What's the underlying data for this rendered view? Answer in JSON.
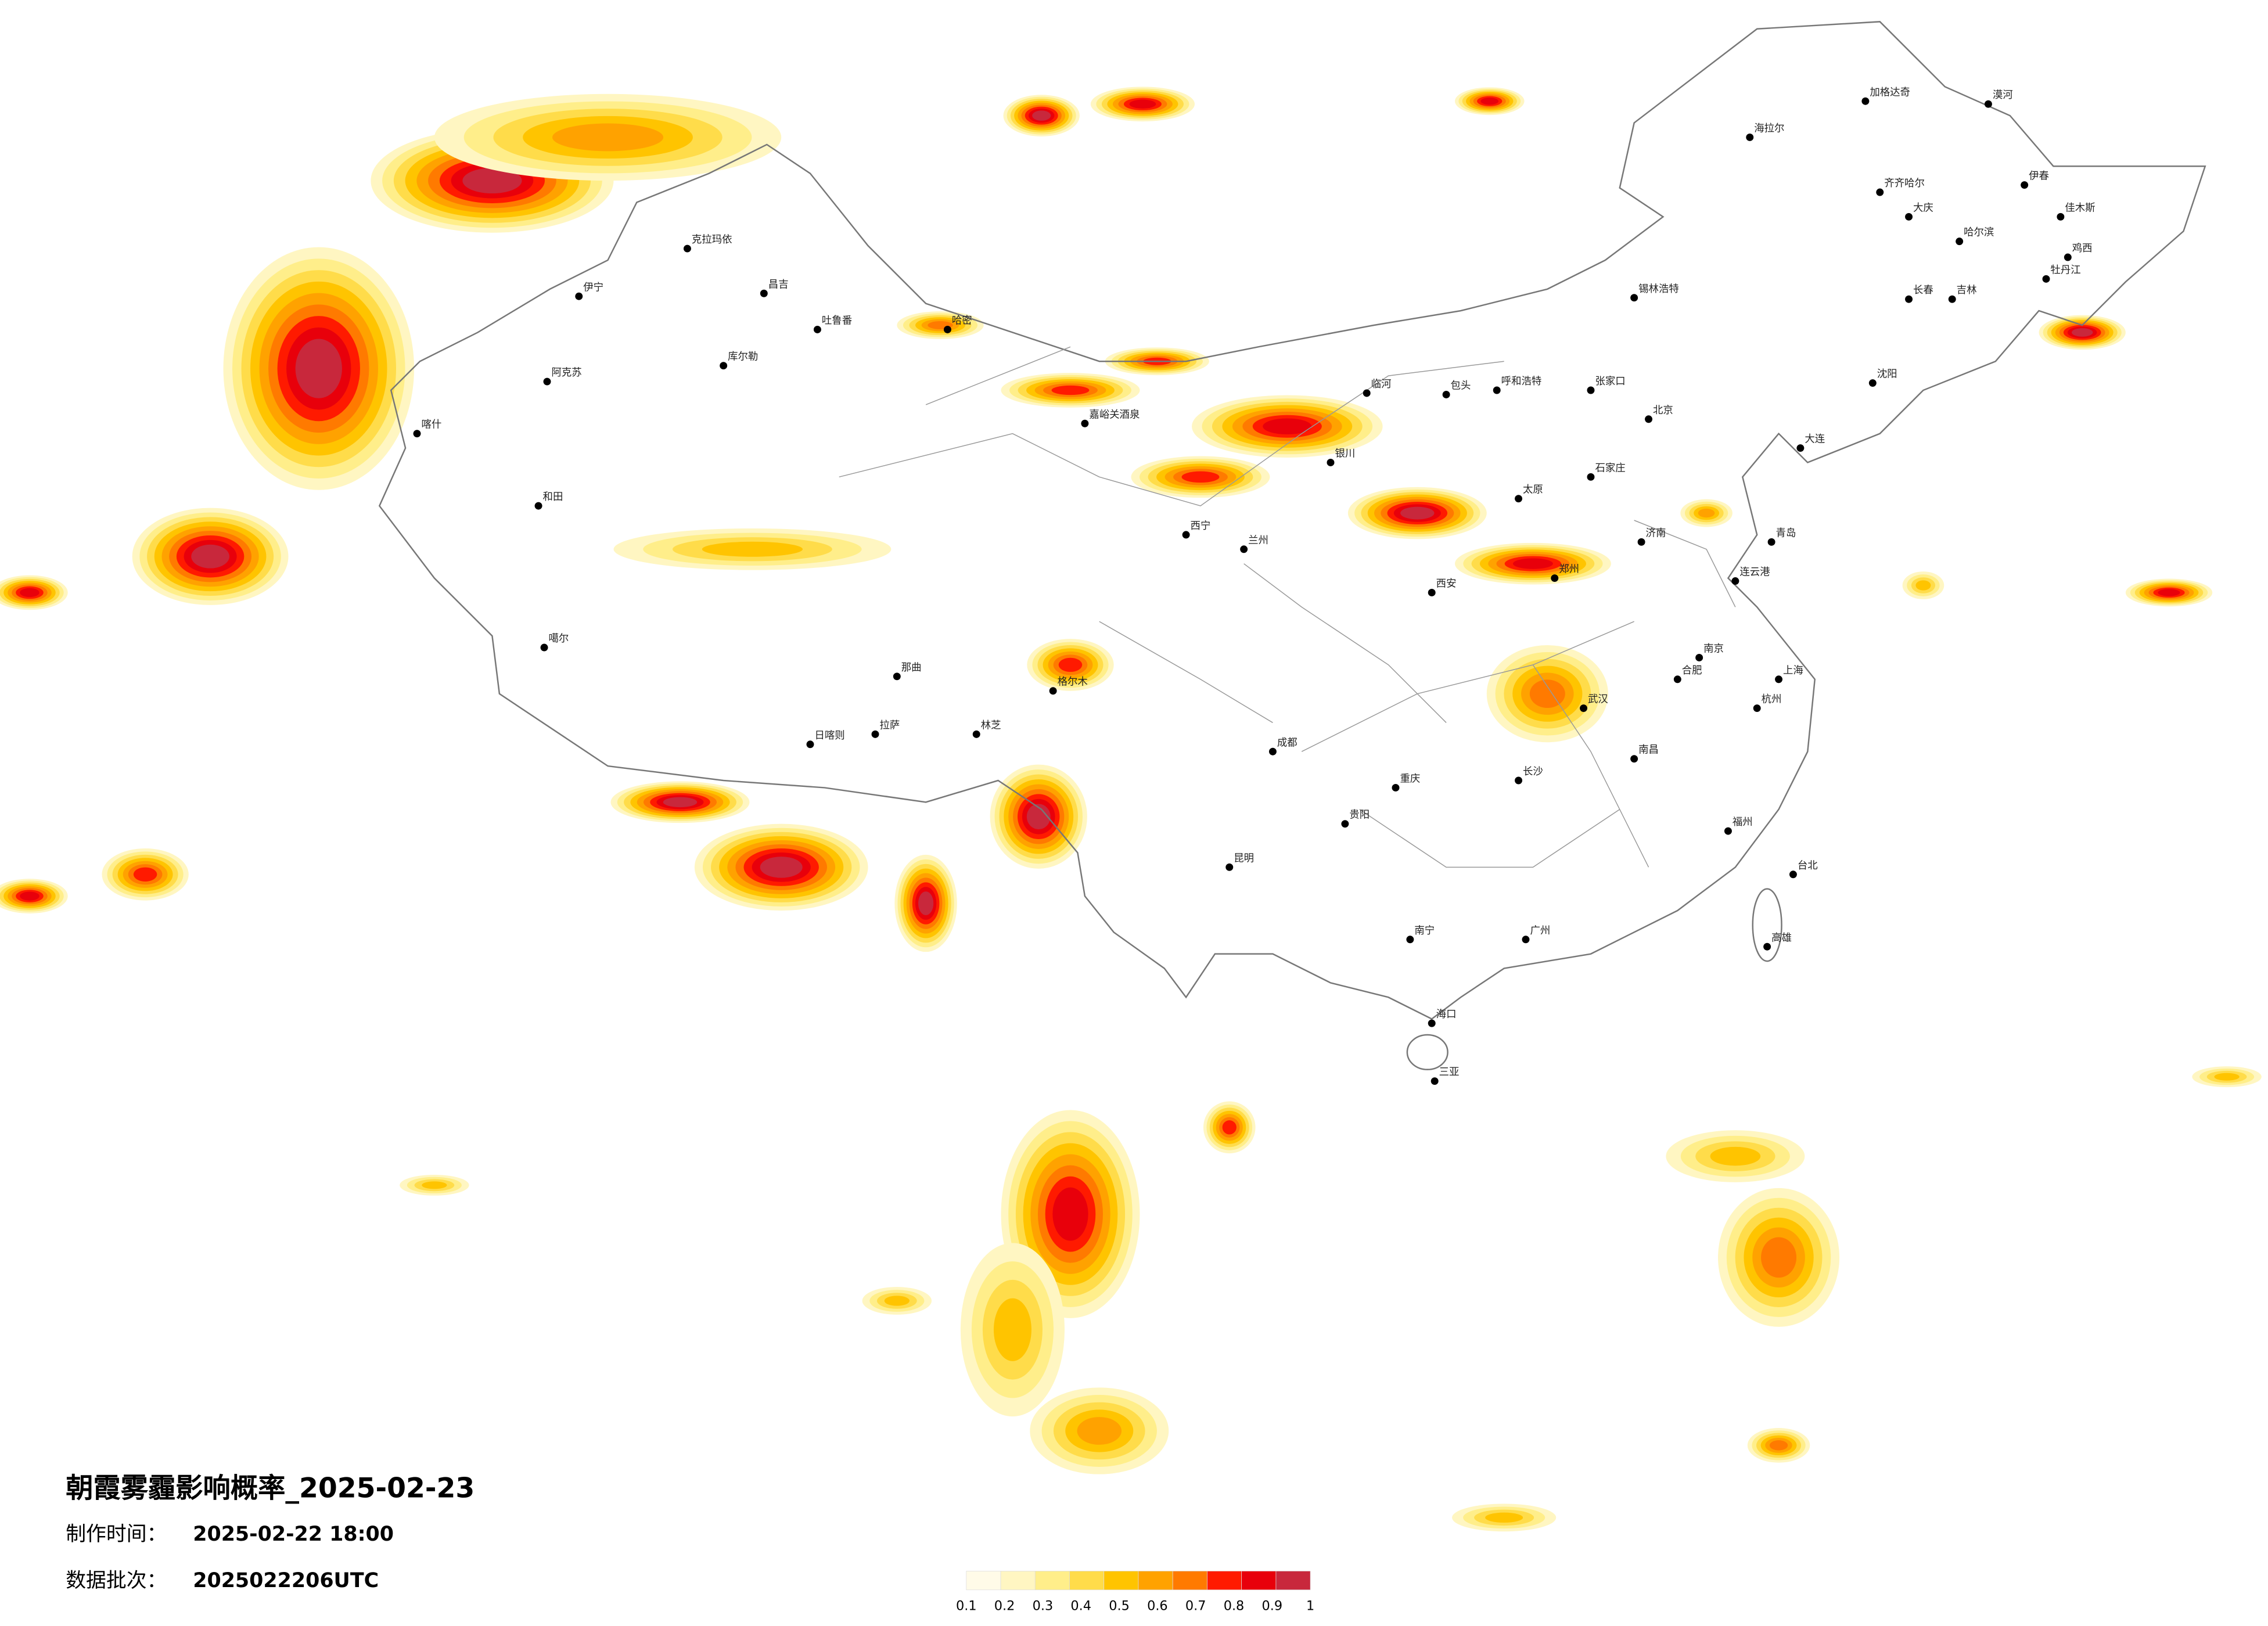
{
  "header": {
    "title": "朝霞雾霾影响概率_2025-02-23",
    "made_label": "制作时间：",
    "made_value": "2025-02-22 18:00",
    "batch_label": "数据批次：",
    "batch_value": "2025022206UTC"
  },
  "legend": {
    "colors": [
      "#fffbe8",
      "#fff6c2",
      "#ffee8a",
      "#ffdc4a",
      "#ffc400",
      "#ffa200",
      "#ff7a00",
      "#ff1a00",
      "#e8000b",
      "#c8283c"
    ],
    "ticks": [
      0.1,
      0.2,
      0.3,
      0.4,
      0.5,
      0.6,
      0.7,
      0.8,
      0.9,
      1
    ]
  },
  "cities": [
    "漠河",
    "加格达奇",
    "海拉尔",
    "齐齐哈尔",
    "大庆",
    "伊春",
    "哈尔滨",
    "佳木斯",
    "鸡西",
    "牡丹江",
    "长春",
    "吉林",
    "锡林浩特",
    "呼和浩特",
    "包头",
    "临河",
    "张家口",
    "克拉玛依",
    "伊宁",
    "昌吉",
    "吐鲁番",
    "哈密",
    "库尔勒",
    "阿克苏",
    "喀什",
    "和田",
    "嘉峪关酒泉",
    "西宁",
    "兰州",
    "银川",
    "格尔木",
    "噶尔",
    "日喀则",
    "拉萨",
    "林芝",
    "那曲",
    "成都",
    "重庆",
    "贵阳",
    "昆明",
    "南宁",
    "海口",
    "三亚",
    "广州",
    "长沙",
    "武汉",
    "南昌",
    "福州",
    "台北",
    "高雄",
    "上海",
    "南京",
    "济南",
    "郑州",
    "西安",
    "太原",
    "石家庄",
    "沈阳",
    "大连",
    "青岛",
    "杭州",
    "合肥",
    "连云港",
    "北京"
  ]
}
